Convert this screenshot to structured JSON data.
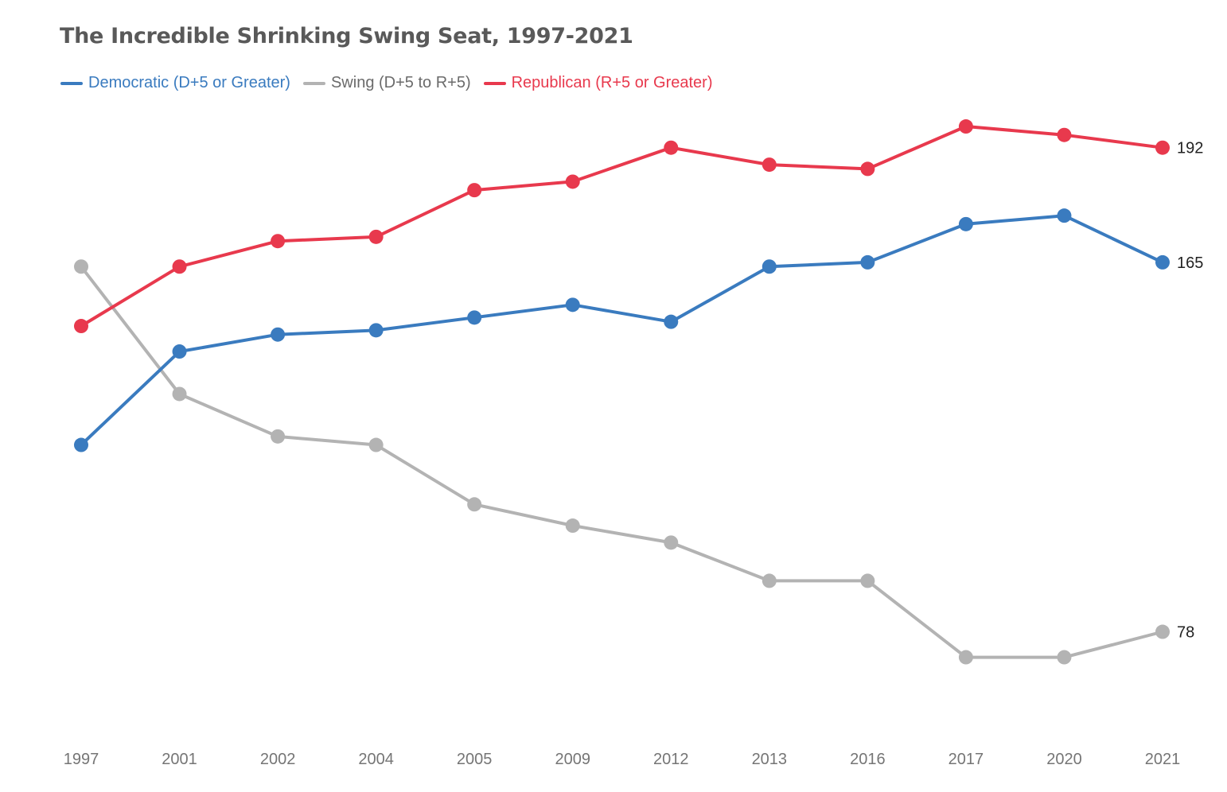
{
  "chart_data": {
    "type": "line",
    "title": "The Incredible Shrinking Swing Seat, 1997-2021",
    "xlabel": "",
    "ylabel": "",
    "categories": [
      "1997",
      "2001",
      "2002",
      "2004",
      "2005",
      "2009",
      "2012",
      "2013",
      "2016",
      "2017",
      "2020",
      "2021"
    ],
    "series": [
      {
        "name": "Democratic (D+5 or Greater)",
        "color": "#3a7bbf",
        "values": [
          122,
          144,
          148,
          149,
          152,
          155,
          151,
          164,
          165,
          174,
          176,
          165
        ]
      },
      {
        "name": "Swing (D+5 to R+5)",
        "color": "#b3b3b3",
        "values": [
          164,
          134,
          124,
          122,
          108,
          103,
          99,
          90,
          90,
          72,
          72,
          78
        ]
      },
      {
        "name": "Republican (R+5 or Greater)",
        "color": "#e8394d",
        "values": [
          150,
          164,
          170,
          171,
          182,
          184,
          192,
          188,
          187,
          197,
          195,
          192
        ]
      }
    ],
    "end_labels": [
      "165",
      "78",
      "192"
    ],
    "grid": false,
    "legend_position": "top-left",
    "ylim": [
      56,
      200
    ]
  }
}
